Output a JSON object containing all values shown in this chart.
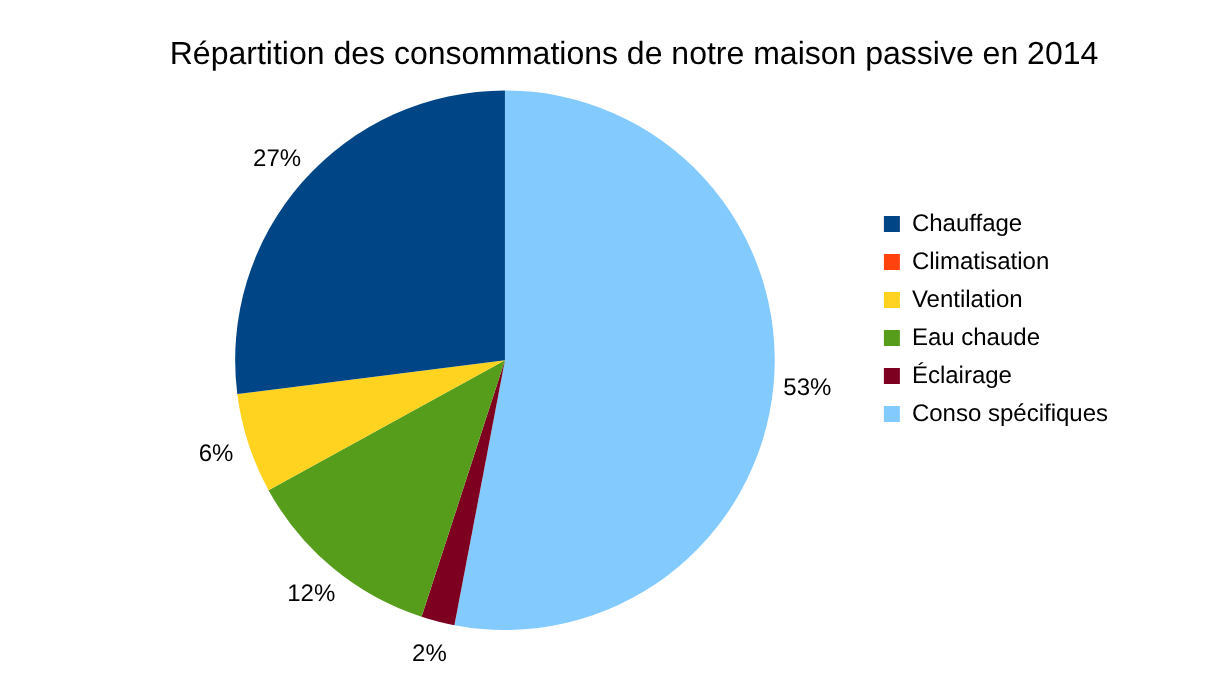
{
  "chart_data": {
    "type": "pie",
    "title": "Répartition des consommations de notre maison passive en 2014",
    "categories": [
      "Chauffage",
      "Climatisation",
      "Ventilation",
      "Eau chaude",
      "Éclairage",
      "Conso spécifiques"
    ],
    "values": [
      27,
      0,
      6,
      12,
      2,
      53
    ],
    "colors": [
      "#004586",
      "#ff420e",
      "#ffd320",
      "#579d1c",
      "#7e0021",
      "#83caff"
    ],
    "value_labels": [
      "27%",
      null,
      "6%",
      "12%",
      "2%",
      "53%"
    ],
    "legend": "right"
  }
}
